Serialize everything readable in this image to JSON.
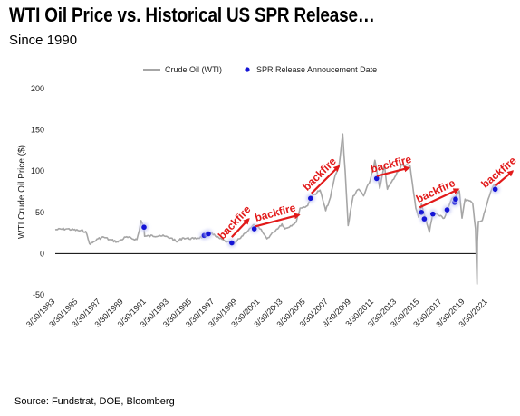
{
  "title": "WTI Oil Price vs. Historical US SPR Release…",
  "subtitle": "Since 1990",
  "source": "Source: Fundstrat, DOE, Bloomberg",
  "colors": {
    "line": "#a6a6a6",
    "marker": "#1414d6",
    "annotation": "#e21a1a",
    "axis": "#000000"
  },
  "chart_data": {
    "type": "line",
    "ylabel": "WTI Crude Oil Price ($)",
    "xlabel": "",
    "ylim": [
      -50,
      200
    ],
    "yticks": [
      -50,
      0,
      50,
      100,
      150,
      200
    ],
    "xlim": [
      "1983-03-30",
      "2022-01-01"
    ],
    "grid": false,
    "legend_position": "top-center",
    "x_tick_labels": [
      "3/30/1983",
      "3/30/1985",
      "3/30/1987",
      "3/30/1989",
      "3/30/1991",
      "3/30/1993",
      "3/30/1995",
      "3/30/1997",
      "3/30/1999",
      "3/30/2001",
      "3/30/2003",
      "3/30/2005",
      "3/30/2007",
      "3/30/2009",
      "3/30/2011",
      "3/30/2013",
      "3/30/2015",
      "3/30/2017",
      "3/30/2019",
      "3/30/2021"
    ],
    "series": [
      {
        "name": "Crude Oil (WTI)",
        "kind": "line",
        "points": [
          [
            "1983-03-30",
            29
          ],
          [
            "1984-03-30",
            30
          ],
          [
            "1985-03-30",
            28
          ],
          [
            "1985-12-01",
            27
          ],
          [
            "1986-04-01",
            12
          ],
          [
            "1986-07-01",
            13
          ],
          [
            "1987-01-01",
            18
          ],
          [
            "1987-07-01",
            20
          ],
          [
            "1988-01-01",
            17
          ],
          [
            "1988-10-01",
            14
          ],
          [
            "1989-06-01",
            20
          ],
          [
            "1990-06-01",
            17
          ],
          [
            "1990-08-15",
            28
          ],
          [
            "1990-10-10",
            40
          ],
          [
            "1991-01-15",
            32
          ],
          [
            "1991-02-01",
            21
          ],
          [
            "1992-06-01",
            22
          ],
          [
            "1993-06-01",
            19
          ],
          [
            "1993-12-01",
            14
          ],
          [
            "1994-06-01",
            19
          ],
          [
            "1995-06-01",
            18
          ],
          [
            "1996-06-01",
            21
          ],
          [
            "1996-10-01",
            25
          ],
          [
            "1997-01-01",
            25
          ],
          [
            "1997-06-01",
            20
          ],
          [
            "1998-03-01",
            15
          ],
          [
            "1998-12-01",
            11
          ],
          [
            "1999-06-01",
            18
          ],
          [
            "1999-12-01",
            25
          ],
          [
            "2000-06-01",
            31
          ],
          [
            "2000-10-01",
            35
          ],
          [
            "2001-06-01",
            27
          ],
          [
            "2001-11-01",
            18
          ],
          [
            "2002-06-01",
            26
          ],
          [
            "2003-03-01",
            36
          ],
          [
            "2003-06-01",
            30
          ],
          [
            "2004-06-01",
            38
          ],
          [
            "2004-10-01",
            55
          ],
          [
            "2005-06-01",
            58
          ],
          [
            "2005-09-01",
            68
          ],
          [
            "2006-07-01",
            77
          ],
          [
            "2007-01-01",
            52
          ],
          [
            "2007-06-01",
            68
          ],
          [
            "2007-11-01",
            95
          ],
          [
            "2008-03-01",
            105
          ],
          [
            "2008-07-01",
            145
          ],
          [
            "2008-09-15",
            100
          ],
          [
            "2008-12-20",
            34
          ],
          [
            "2009-06-01",
            70
          ],
          [
            "2009-12-01",
            78
          ],
          [
            "2010-05-01",
            70
          ],
          [
            "2010-12-01",
            89
          ],
          [
            "2011-04-29",
            113
          ],
          [
            "2011-10-01",
            79
          ],
          [
            "2012-03-01",
            107
          ],
          [
            "2012-06-01",
            78
          ],
          [
            "2013-03-01",
            95
          ],
          [
            "2013-09-01",
            108
          ],
          [
            "2014-06-01",
            106
          ],
          [
            "2014-12-01",
            55
          ],
          [
            "2015-03-01",
            44
          ],
          [
            "2015-06-01",
            60
          ],
          [
            "2015-12-01",
            35
          ],
          [
            "2016-02-11",
            26
          ],
          [
            "2016-06-01",
            50
          ],
          [
            "2017-06-01",
            43
          ],
          [
            "2018-01-01",
            64
          ],
          [
            "2018-10-01",
            76
          ],
          [
            "2018-12-24",
            43
          ],
          [
            "2019-04-01",
            66
          ],
          [
            "2019-12-01",
            61
          ],
          [
            "2020-03-01",
            30
          ],
          [
            "2020-04-20",
            -37
          ],
          [
            "2020-05-01",
            15
          ],
          [
            "2020-06-01",
            39
          ],
          [
            "2020-10-01",
            40
          ],
          [
            "2021-01-01",
            52
          ],
          [
            "2021-03-01",
            60
          ],
          [
            "2021-07-01",
            75
          ],
          [
            "2021-10-25",
            84
          ],
          [
            "2021-11-23",
            78
          ]
        ]
      },
      {
        "name": "SPR Release Annoucement Date",
        "kind": "scatter",
        "points": [
          [
            "1991-01-16",
            32
          ],
          [
            "1996-04-29",
            22
          ],
          [
            "1996-09-10",
            24
          ],
          [
            "1998-10-01",
            13
          ],
          [
            "2000-09-22",
            30
          ],
          [
            "2005-09-02",
            67
          ],
          [
            "2011-06-23",
            91
          ],
          [
            "2015-06-01",
            50
          ],
          [
            "2015-09-01",
            42
          ],
          [
            "2016-06-01",
            48
          ],
          [
            "2017-08-31",
            53
          ],
          [
            "2018-05-01",
            62
          ],
          [
            "2018-06-01",
            66
          ],
          [
            "2021-11-23",
            78
          ]
        ]
      }
    ],
    "annotations": [
      {
        "text": "backfire",
        "arrow_from": [
          "1998-10-01",
          20
        ],
        "arrow_to": [
          "2000-04-01",
          42
        ]
      },
      {
        "text": "backfire",
        "arrow_from": [
          "2000-11-01",
          33
        ],
        "arrow_to": [
          "2004-09-01",
          47
        ]
      },
      {
        "text": "backfire",
        "arrow_from": [
          "2005-10-01",
          73
        ],
        "arrow_to": [
          "2008-03-01",
          106
        ]
      },
      {
        "text": "backfire",
        "arrow_from": [
          "2011-07-01",
          94
        ],
        "arrow_to": [
          "2014-05-01",
          104
        ]
      },
      {
        "text": "backfire",
        "arrow_from": [
          "2015-04-01",
          56
        ],
        "arrow_to": [
          "2018-09-01",
          78
        ]
      },
      {
        "text": "backfire",
        "arrow_from": [
          "2021-11-24",
          82
        ],
        "arrow_to": [
          "2023-10-01",
          100
        ]
      }
    ]
  }
}
